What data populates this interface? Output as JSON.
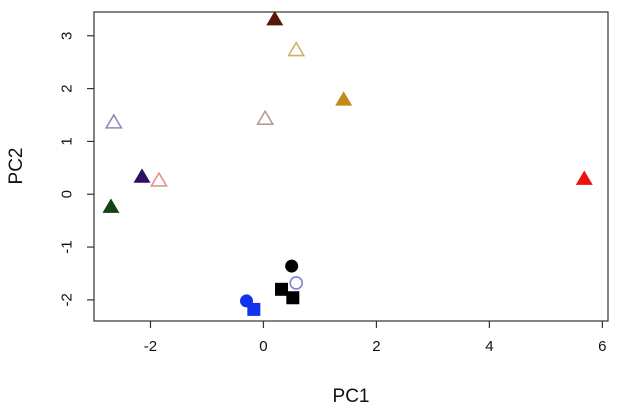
{
  "chart_data": {
    "type": "scatter",
    "title": "",
    "xlabel": "PC1",
    "ylabel": "PC2",
    "xlim": [
      -3.0,
      6.1
    ],
    "ylim": [
      -2.4,
      3.45
    ],
    "xticks": [
      "-2",
      "0",
      "2",
      "4",
      "6"
    ],
    "yticks": [
      "-2",
      "-1",
      "0",
      "1",
      "2",
      "3"
    ],
    "grid": false,
    "legend": "none",
    "points": [
      {
        "x": 0.2,
        "y": 3.3,
        "shape": "triangle",
        "filled": true,
        "color": "#5a1608"
      },
      {
        "x": 0.58,
        "y": 2.72,
        "shape": "triangle",
        "filled": false,
        "color": "#c8b46a"
      },
      {
        "x": 1.42,
        "y": 1.78,
        "shape": "triangle",
        "filled": true,
        "color": "#c28a16"
      },
      {
        "x": -2.65,
        "y": 1.35,
        "shape": "triangle",
        "filled": false,
        "color": "#9b84c4"
      },
      {
        "x": 0.03,
        "y": 1.42,
        "shape": "triangle",
        "filled": false,
        "color": "#b89a94"
      },
      {
        "x": -2.15,
        "y": 0.32,
        "shape": "triangle",
        "filled": true,
        "color": "#2c1160"
      },
      {
        "x": -1.85,
        "y": 0.25,
        "shape": "triangle",
        "filled": false,
        "color": "#e8908a"
      },
      {
        "x": -2.7,
        "y": -0.25,
        "shape": "triangle",
        "filled": true,
        "color": "#114411"
      },
      {
        "x": 5.68,
        "y": 0.28,
        "shape": "triangle",
        "filled": true,
        "color": "#ee1111"
      },
      {
        "x": 0.5,
        "y": -1.36,
        "shape": "circle",
        "filled": true,
        "color": "#000000"
      },
      {
        "x": 0.58,
        "y": -1.68,
        "shape": "circle",
        "filled": false,
        "color": "#7f82d8"
      },
      {
        "x": 0.32,
        "y": -1.8,
        "shape": "square",
        "filled": true,
        "color": "#000000"
      },
      {
        "x": 0.52,
        "y": -1.96,
        "shape": "square",
        "filled": true,
        "color": "#000000"
      },
      {
        "x": -0.3,
        "y": -2.02,
        "shape": "circle",
        "filled": true,
        "color": "#1133ee"
      },
      {
        "x": -0.17,
        "y": -2.18,
        "shape": "square",
        "filled": true,
        "color": "#1133ee"
      }
    ]
  }
}
